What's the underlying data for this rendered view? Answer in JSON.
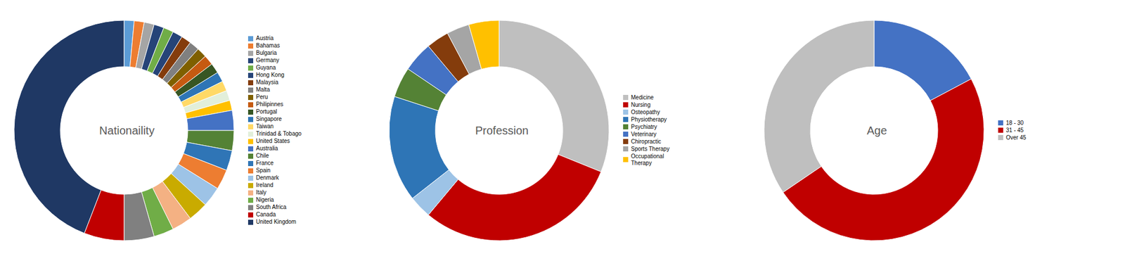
{
  "chart_data": [
    {
      "type": "pie",
      "title": "Nationaility",
      "legend": "right",
      "categories": [
        "Austria",
        "Bahamas",
        "Bulgaria",
        "Germany",
        "Guyana",
        "Hong Kong",
        "Malaysia",
        "Malta",
        "Peru",
        "Philipinnes",
        "Portugal",
        "Singapore",
        "Taiwan",
        "Trinidad & Tobago",
        "United States",
        "Australia",
        "Chile",
        "France",
        "Spain",
        "Denmark",
        "Ireland",
        "Italy",
        "Nigeria",
        "South Africa",
        "Canada",
        "United Kingdom"
      ],
      "values": [
        1,
        1,
        1,
        1,
        1,
        1,
        1,
        1,
        1,
        1,
        1,
        1,
        1,
        1,
        1,
        2,
        2,
        2,
        2,
        2,
        2,
        2,
        2,
        3,
        4,
        30
      ],
      "colors": [
        "#5b9bd5",
        "#ed7d31",
        "#a5a5a5",
        "#264478",
        "#70ad47",
        "#264478",
        "#843c0c",
        "#808080",
        "#7f6000",
        "#c55a11",
        "#375623",
        "#2e75b6",
        "#ffd966",
        "#e2efda",
        "#ffc000",
        "#4472c4",
        "#548235",
        "#2f75b6",
        "#ed7d31",
        "#9dc3e6",
        "#c9ab00",
        "#f4b183",
        "#70ad47",
        "#808080",
        "#c00000",
        "#1f3864"
      ]
    },
    {
      "type": "pie",
      "title": "Profession",
      "legend": "right",
      "categories": [
        "Medicine",
        "Nursing",
        "Osteopathy",
        "Physiotherapy",
        "Psychiatry",
        "Veterinary",
        "Chiropractic",
        "Sports Therapy",
        "Occupational\nTherapy"
      ],
      "values": [
        28,
        27,
        3,
        14,
        4,
        4,
        3,
        3,
        4
      ],
      "colors": [
        "#bfbfbf",
        "#c00000",
        "#9dc3e6",
        "#2e75b6",
        "#548235",
        "#4472c4",
        "#843c0c",
        "#a5a5a5",
        "#ffc000"
      ]
    },
    {
      "type": "pie",
      "title": "Age",
      "legend": "right",
      "categories": [
        "18 - 30",
        "31 - 45",
        "Over 45"
      ],
      "values": [
        15,
        42,
        30
      ],
      "colors": [
        "#4472c4",
        "#c00000",
        "#bfbfbf"
      ]
    }
  ]
}
